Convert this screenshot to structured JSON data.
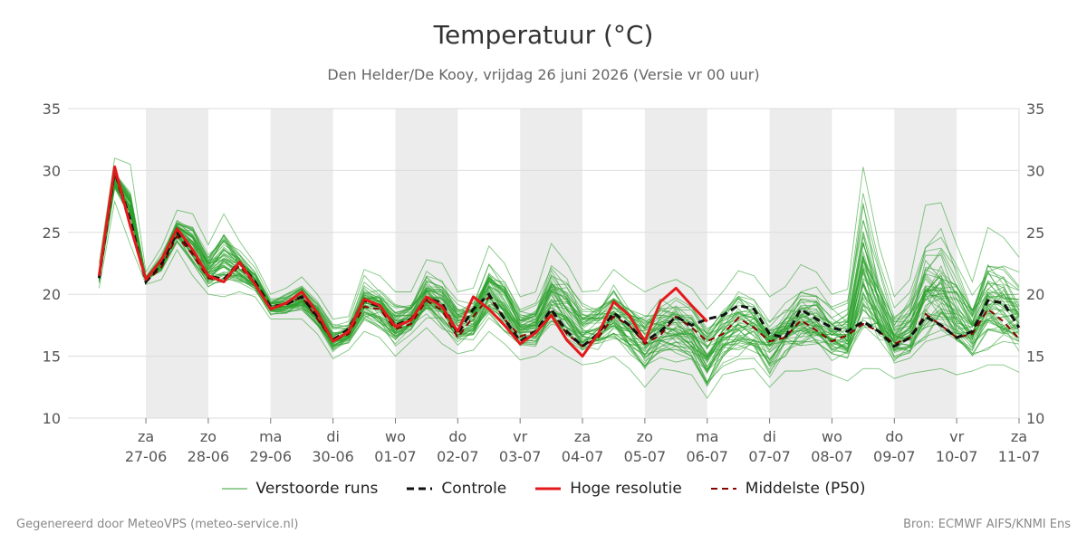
{
  "chart_data": {
    "type": "line",
    "title": "Temperatuur (°C)",
    "subtitle": "Den Helder/De Kooy, vrijdag 26 juni 2026 (Versie vr 00 uur)",
    "ylim": [
      10,
      35
    ],
    "yticks": [
      10,
      15,
      20,
      25,
      30,
      35
    ],
    "x_range": [
      -1.25,
      14
    ],
    "x_ticks": [
      {
        "day": "za",
        "date": "27-06"
      },
      {
        "day": "zo",
        "date": "28-06"
      },
      {
        "day": "ma",
        "date": "29-06"
      },
      {
        "day": "di",
        "date": "30-06"
      },
      {
        "day": "wo",
        "date": "01-07"
      },
      {
        "day": "do",
        "date": "02-07"
      },
      {
        "day": "vr",
        "date": "03-07"
      },
      {
        "day": "za",
        "date": "04-07"
      },
      {
        "day": "zo",
        "date": "05-07"
      },
      {
        "day": "ma",
        "date": "06-07"
      },
      {
        "day": "di",
        "date": "07-07"
      },
      {
        "day": "wo",
        "date": "08-07"
      },
      {
        "day": "do",
        "date": "09-07"
      },
      {
        "day": "vr",
        "date": "10-07"
      },
      {
        "day": "za",
        "date": "11-07"
      }
    ],
    "shaded_days": [
      0,
      2,
      4,
      6,
      8,
      10,
      12
    ],
    "grid": true,
    "legend_position": "bottom",
    "colors": {
      "ensemble": "#2ca02c",
      "controle": "#111111",
      "hoge_resolutie": "#e31a1c",
      "p50": "#8b0000",
      "shade": "#ececec",
      "grid": "#dddddd"
    },
    "controle": [
      [
        -0.75,
        21.3
      ],
      [
        -0.5,
        30.0
      ],
      [
        -0.25,
        26.0
      ],
      [
        0,
        21.0
      ],
      [
        0.25,
        22.5
      ],
      [
        0.5,
        25.0
      ],
      [
        0.75,
        23.5
      ],
      [
        1,
        21.5
      ],
      [
        1.25,
        21.2
      ],
      [
        1.5,
        22.6
      ],
      [
        1.75,
        21.0
      ],
      [
        2,
        19.0
      ],
      [
        2.25,
        19.2
      ],
      [
        2.5,
        19.8
      ],
      [
        2.75,
        18.2
      ],
      [
        3,
        16.3
      ],
      [
        3.25,
        17.2
      ],
      [
        3.5,
        19.5
      ],
      [
        3.75,
        19.0
      ],
      [
        4,
        17.5
      ],
      [
        4.25,
        18.0
      ],
      [
        4.5,
        19.7
      ],
      [
        4.75,
        19.3
      ],
      [
        5,
        16.8
      ],
      [
        5.25,
        18.8
      ],
      [
        5.5,
        20.0
      ],
      [
        5.75,
        18.0
      ],
      [
        6,
        16.2
      ],
      [
        6.25,
        17.0
      ],
      [
        6.5,
        18.8
      ],
      [
        6.75,
        17.0
      ],
      [
        7,
        15.8
      ],
      [
        7.25,
        16.8
      ],
      [
        7.5,
        18.5
      ],
      [
        7.75,
        17.5
      ],
      [
        8,
        16.2
      ],
      [
        8.25,
        17.0
      ],
      [
        8.5,
        18.2
      ],
      [
        8.75,
        17.5
      ],
      [
        9,
        18.0
      ],
      [
        9.25,
        18.3
      ],
      [
        9.5,
        19.1
      ],
      [
        9.75,
        18.8
      ],
      [
        10,
        16.8
      ],
      [
        10.25,
        16.5
      ],
      [
        10.5,
        18.8
      ],
      [
        10.75,
        18.0
      ],
      [
        11,
        17.3
      ],
      [
        11.25,
        17.0
      ],
      [
        11.5,
        17.8
      ],
      [
        11.75,
        17.0
      ],
      [
        12,
        15.8
      ],
      [
        12.25,
        16.5
      ],
      [
        12.5,
        18.2
      ],
      [
        12.75,
        17.5
      ],
      [
        13,
        16.5
      ],
      [
        13.25,
        17.0
      ],
      [
        13.5,
        19.5
      ],
      [
        13.75,
        19.3
      ],
      [
        14,
        17.3
      ]
    ],
    "hoge_resolutie": [
      [
        -0.75,
        21.5
      ],
      [
        -0.5,
        30.3
      ],
      [
        -0.25,
        25.5
      ],
      [
        0,
        21.2
      ],
      [
        0.25,
        22.8
      ],
      [
        0.5,
        25.3
      ],
      [
        0.75,
        23.6
      ],
      [
        1,
        21.5
      ],
      [
        1.25,
        21.0
      ],
      [
        1.5,
        22.6
      ],
      [
        1.75,
        20.8
      ],
      [
        2,
        18.8
      ],
      [
        2.25,
        19.3
      ],
      [
        2.5,
        20.2
      ],
      [
        2.75,
        18.5
      ],
      [
        3,
        16.2
      ],
      [
        3.25,
        17.0
      ],
      [
        3.5,
        19.6
      ],
      [
        3.75,
        19.1
      ],
      [
        4,
        17.4
      ],
      [
        4.25,
        17.9
      ],
      [
        4.5,
        19.8
      ],
      [
        4.75,
        19.0
      ],
      [
        5,
        17.0
      ],
      [
        5.25,
        19.8
      ],
      [
        5.5,
        18.8
      ],
      [
        5.75,
        17.5
      ],
      [
        6,
        16.0
      ],
      [
        6.25,
        16.9
      ],
      [
        6.5,
        18.3
      ],
      [
        6.75,
        16.3
      ],
      [
        7,
        15.0
      ],
      [
        7.25,
        16.8
      ],
      [
        7.5,
        19.4
      ],
      [
        7.75,
        18.3
      ],
      [
        8,
        16.2
      ],
      [
        8.25,
        19.4
      ],
      [
        8.5,
        20.5
      ],
      [
        8.75,
        19.1
      ],
      [
        9,
        17.8
      ]
    ],
    "p50": [
      [
        -0.75,
        21.4
      ],
      [
        -0.5,
        29.8
      ],
      [
        -0.25,
        25.5
      ],
      [
        0,
        21.0
      ],
      [
        0.25,
        22.2
      ],
      [
        0.5,
        24.7
      ],
      [
        0.75,
        23.2
      ],
      [
        1,
        21.3
      ],
      [
        1.25,
        21.0
      ],
      [
        1.5,
        22.3
      ],
      [
        1.75,
        20.8
      ],
      [
        2,
        18.8
      ],
      [
        2.25,
        19.2
      ],
      [
        2.5,
        19.8
      ],
      [
        2.75,
        18.0
      ],
      [
        3,
        16.2
      ],
      [
        3.25,
        16.8
      ],
      [
        3.5,
        19.0
      ],
      [
        3.75,
        18.8
      ],
      [
        4,
        17.2
      ],
      [
        4.25,
        17.6
      ],
      [
        4.5,
        19.5
      ],
      [
        4.75,
        18.7
      ],
      [
        5,
        16.5
      ],
      [
        5.25,
        18.2
      ],
      [
        5.5,
        19.8
      ],
      [
        5.75,
        18.0
      ],
      [
        6,
        16.6
      ],
      [
        6.25,
        17.0
      ],
      [
        6.5,
        18.7
      ],
      [
        6.75,
        16.8
      ],
      [
        7,
        15.8
      ],
      [
        7.25,
        16.5
      ],
      [
        7.5,
        18.2
      ],
      [
        7.75,
        17.5
      ],
      [
        8,
        16.0
      ],
      [
        8.25,
        16.7
      ],
      [
        8.5,
        18.2
      ],
      [
        8.75,
        17.3
      ],
      [
        9,
        16.2
      ],
      [
        9.25,
        16.8
      ],
      [
        9.5,
        18.1
      ],
      [
        9.75,
        17.3
      ],
      [
        10,
        16.2
      ],
      [
        10.25,
        16.5
      ],
      [
        10.5,
        17.9
      ],
      [
        10.75,
        17.1
      ],
      [
        11,
        16.2
      ],
      [
        11.25,
        16.7
      ],
      [
        11.5,
        17.6
      ],
      [
        11.75,
        17.0
      ],
      [
        12,
        16.0
      ],
      [
        12.25,
        16.5
      ],
      [
        12.5,
        18.4
      ],
      [
        12.75,
        17.5
      ],
      [
        13,
        16.5
      ],
      [
        13.25,
        16.8
      ],
      [
        13.5,
        18.8
      ],
      [
        13.75,
        17.8
      ],
      [
        14,
        16.4
      ]
    ],
    "ensemble_spread": [
      [
        -0.75,
        20.5,
        22.5
      ],
      [
        -0.5,
        27.5,
        31.0
      ],
      [
        -0.25,
        24.0,
        30.5
      ],
      [
        0,
        20.8,
        21.8
      ],
      [
        0.25,
        21.2,
        23.8
      ],
      [
        0.5,
        23.6,
        26.8
      ],
      [
        0.75,
        21.5,
        26.5
      ],
      [
        1,
        20.0,
        24.0
      ],
      [
        1.25,
        19.8,
        26.5
      ],
      [
        1.5,
        20.2,
        24.3
      ],
      [
        1.75,
        19.8,
        22.5
      ],
      [
        2,
        18.0,
        20.0
      ],
      [
        2.25,
        18.0,
        20.5
      ],
      [
        2.5,
        18.0,
        21.4
      ],
      [
        2.75,
        16.8,
        20.0
      ],
      [
        3,
        14.8,
        18.0
      ],
      [
        3.25,
        15.5,
        18.2
      ],
      [
        3.5,
        17.0,
        22.0
      ],
      [
        3.75,
        16.5,
        21.5
      ],
      [
        4,
        15.0,
        20.2
      ],
      [
        4.25,
        16.2,
        20.2
      ],
      [
        4.5,
        17.3,
        22.8
      ],
      [
        4.75,
        16.0,
        22.5
      ],
      [
        5,
        15.2,
        20.2
      ],
      [
        5.25,
        15.5,
        20.5
      ],
      [
        5.5,
        17.0,
        23.9
      ],
      [
        5.75,
        16.0,
        22.5
      ],
      [
        6,
        14.7,
        19.8
      ],
      [
        6.25,
        15.0,
        20.2
      ],
      [
        6.5,
        15.8,
        24.1
      ],
      [
        6.75,
        15.0,
        22.5
      ],
      [
        7,
        14.3,
        20.2
      ],
      [
        7.25,
        14.5,
        20.3
      ],
      [
        7.5,
        15.0,
        22.0
      ],
      [
        7.75,
        14.0,
        21.0
      ],
      [
        8,
        12.5,
        20.2
      ],
      [
        8.25,
        14.0,
        20.8
      ],
      [
        8.5,
        13.8,
        21.2
      ],
      [
        8.75,
        13.5,
        20.5
      ],
      [
        9,
        11.6,
        18.8
      ],
      [
        9.25,
        13.5,
        20.2
      ],
      [
        9.5,
        13.8,
        21.9
      ],
      [
        9.75,
        14.0,
        21.5
      ],
      [
        10,
        12.5,
        19.8
      ],
      [
        10.25,
        13.8,
        20.6
      ],
      [
        10.5,
        13.8,
        22.4
      ],
      [
        10.75,
        14.0,
        21.8
      ],
      [
        11,
        13.5,
        20.0
      ],
      [
        11.25,
        13.0,
        20.4
      ],
      [
        11.5,
        14.0,
        30.3
      ],
      [
        11.75,
        14.0,
        24.0
      ],
      [
        12,
        13.2,
        19.8
      ],
      [
        12.25,
        13.6,
        21.2
      ],
      [
        12.5,
        13.8,
        27.2
      ],
      [
        12.75,
        14.0,
        27.4
      ],
      [
        13,
        13.5,
        24.0
      ],
      [
        13.25,
        13.8,
        21.0
      ],
      [
        13.5,
        14.3,
        25.4
      ],
      [
        13.75,
        14.3,
        24.6
      ],
      [
        14,
        13.7,
        23.0
      ]
    ],
    "legend": [
      "Verstoorde runs",
      "Controle",
      "Hoge resolutie",
      "Middelste (P50)"
    ]
  },
  "footer": {
    "left": "Gegenereerd door MeteoVPS (meteo-service.nl)",
    "right": "Bron: ECMWF AIFS/KNMI Ens"
  }
}
